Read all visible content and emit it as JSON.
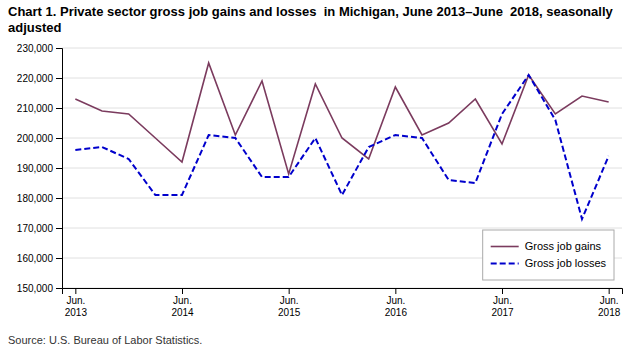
{
  "chart_data": {
    "type": "line",
    "title": "Chart 1. Private sector gross job gains and losses  in Michigan, June 2013–June  2018, seasonally adjusted",
    "annotations": [
      "Source: U.S. Bureau of Labor Statistics."
    ],
    "categories": [
      "Jun.\n2013",
      null,
      null,
      null,
      "Jun.\n2014",
      null,
      null,
      null,
      "Jun.\n2015",
      null,
      null,
      null,
      "Jun.\n2016",
      null,
      null,
      null,
      "Jun.\n2017",
      null,
      null,
      null,
      "Jun.\n2018"
    ],
    "series": [
      {
        "name": "Gross job gains",
        "color": "#7B3B5E",
        "line_style": "solid",
        "values": [
          213000,
          209000,
          208000,
          200000,
          192000,
          225000,
          201000,
          219000,
          188000,
          218000,
          200000,
          193000,
          217000,
          201000,
          205000,
          213000,
          198000,
          221000,
          208000,
          214000,
          212000
        ]
      },
      {
        "name": "Gross job losses",
        "color": "#0000CC",
        "line_style": "dashed",
        "values": [
          196000,
          197000,
          193000,
          181000,
          181000,
          201000,
          200000,
          187000,
          187000,
          200000,
          181000,
          197000,
          201000,
          200000,
          186000,
          185000,
          208000,
          221000,
          206000,
          173000,
          194000
        ]
      }
    ],
    "ylim": [
      150000,
      230000
    ],
    "yticks": [
      {
        "value": 150000,
        "label": "150,000"
      },
      {
        "value": 160000,
        "label": "160,000"
      },
      {
        "value": 170000,
        "label": "170,000"
      },
      {
        "value": 180000,
        "label": "180,000"
      },
      {
        "value": 190000,
        "label": "190,000"
      },
      {
        "value": 200000,
        "label": "200,000"
      },
      {
        "value": 210000,
        "label": "210,000"
      },
      {
        "value": 220000,
        "label": "220,000"
      },
      {
        "value": 230000,
        "label": "230,000"
      }
    ],
    "grid": true,
    "legend": "lower right"
  }
}
